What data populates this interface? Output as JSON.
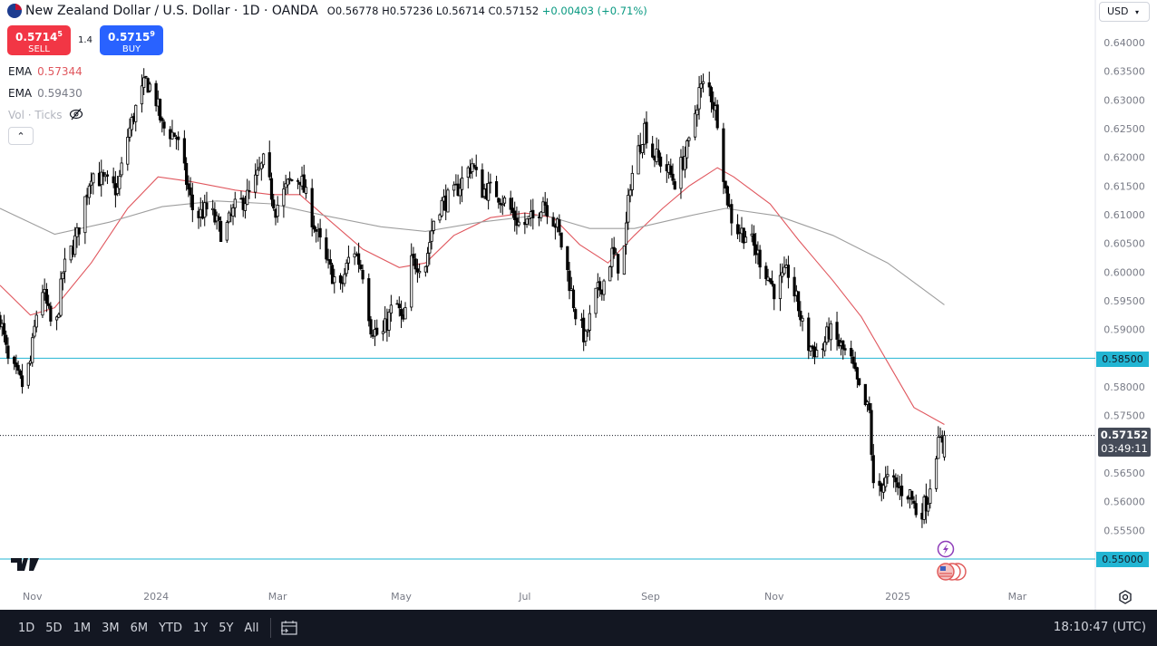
{
  "header": {
    "title": "New Zealand Dollar / U.S. Dollar · 1D · OANDA",
    "open": "O0.56778",
    "high": "H0.57236",
    "low": "L0.56714",
    "close": "C0.57152",
    "change": "+0.00403 (+0.71%)"
  },
  "trade": {
    "sell_price": "0.5714",
    "sell_sup": "5",
    "sell_label": "SELL",
    "spread": "1.4",
    "buy_price": "0.5715",
    "buy_sup": "9",
    "buy_label": "BUY"
  },
  "legend": {
    "ema1_label": "EMA",
    "ema1_value": "0.57344",
    "ema2_label": "EMA",
    "ema2_value": "0.59430",
    "vol_label": "Vol · Ticks",
    "collapse_icon": "chevron-up-icon"
  },
  "currency_select": "USD",
  "price_labels": {
    "level_high": "0.58500",
    "level_low": "0.55000",
    "current_price": "0.57152",
    "countdown": "03:49:11"
  },
  "colors": {
    "ema_fast": "#e0575e",
    "ema_slow": "#9e9e9e",
    "horizontal_lines": "#22b5d3",
    "candle_up_fill": "#ffffff",
    "candle_down_fill": "#000000"
  },
  "bottom_bar": {
    "ranges": [
      "1D",
      "5D",
      "1M",
      "3M",
      "6M",
      "YTD",
      "1Y",
      "5Y",
      "All"
    ],
    "clock": "18:10:47 (UTC)"
  },
  "chart_data": {
    "type": "candlestick",
    "title": "New Zealand Dollar / U.S. Dollar · 1D · OANDA",
    "x_ticks": [
      {
        "label": "Nov",
        "date": "2023-11-01"
      },
      {
        "label": "2024",
        "date": "2024-01-01"
      },
      {
        "label": "Mar",
        "date": "2024-03-01"
      },
      {
        "label": "May",
        "date": "2024-05-01"
      },
      {
        "label": "Jul",
        "date": "2024-07-01"
      },
      {
        "label": "Sep",
        "date": "2024-09-01"
      },
      {
        "label": "Nov",
        "date": "2024-11-01"
      },
      {
        "label": "2025",
        "date": "2025-01-01"
      },
      {
        "label": "Mar",
        "date": "2025-03-01"
      }
    ],
    "y_ticks": [
      "0.64000",
      "0.63500",
      "0.63000",
      "0.62500",
      "0.62000",
      "0.61500",
      "0.61000",
      "0.60500",
      "0.60000",
      "0.59500",
      "0.59000",
      "0.58000",
      "0.57500",
      "0.56500",
      "0.56000",
      "0.55500"
    ],
    "ylim": [
      0.5475,
      0.6415
    ],
    "grid": false,
    "last_candle": {
      "date": "2025-01-24",
      "open": 0.56778,
      "high": 0.57236,
      "low": 0.56714,
      "close": 0.57152
    },
    "close_path": [
      [
        "2023-10-16",
        0.5922
      ],
      [
        "2023-10-20",
        0.5843
      ],
      [
        "2023-10-27",
        0.5803
      ],
      [
        "2023-10-31",
        0.5843
      ],
      [
        "2023-11-05",
        0.5985
      ],
      [
        "2023-11-12",
        0.5882
      ],
      [
        "2023-11-16",
        0.6
      ],
      [
        "2023-11-23",
        0.6064
      ],
      [
        "2023-11-30",
        0.6174
      ],
      [
        "2023-12-06",
        0.6158
      ],
      [
        "2023-12-13",
        0.6143
      ],
      [
        "2023-12-18",
        0.6237
      ],
      [
        "2023-12-22",
        0.6285
      ],
      [
        "2023-12-27",
        0.6332
      ],
      [
        "2023-12-31",
        0.6316
      ],
      [
        "2024-01-04",
        0.6253
      ],
      [
        "2024-01-11",
        0.6237
      ],
      [
        "2024-01-16",
        0.6158
      ],
      [
        "2024-01-20",
        0.6095
      ],
      [
        "2024-01-27",
        0.6111
      ],
      [
        "2024-02-03",
        0.6064
      ],
      [
        "2024-02-09",
        0.6111
      ],
      [
        "2024-02-16",
        0.6135
      ],
      [
        "2024-02-23",
        0.619
      ],
      [
        "2024-02-29",
        0.6111
      ],
      [
        "2024-03-07",
        0.6158
      ],
      [
        "2024-03-12",
        0.6166
      ],
      [
        "2024-03-18",
        0.6095
      ],
      [
        "2024-03-25",
        0.6016
      ],
      [
        "2024-04-01",
        0.5969
      ],
      [
        "2024-04-07",
        0.6048
      ],
      [
        "2024-04-12",
        0.6
      ],
      [
        "2024-04-16",
        0.5906
      ],
      [
        "2024-04-21",
        0.5882
      ],
      [
        "2024-04-28",
        0.5953
      ],
      [
        "2024-05-02",
        0.5906
      ],
      [
        "2024-05-06",
        0.6016
      ],
      [
        "2024-05-13",
        0.6016
      ],
      [
        "2024-05-18",
        0.6111
      ],
      [
        "2024-05-27",
        0.6135
      ],
      [
        "2024-06-05",
        0.619
      ],
      [
        "2024-06-09",
        0.6143
      ],
      [
        "2024-06-16",
        0.6143
      ],
      [
        "2024-06-22",
        0.6119
      ],
      [
        "2024-06-29",
        0.6079
      ],
      [
        "2024-07-06",
        0.6095
      ],
      [
        "2024-07-10",
        0.6127
      ],
      [
        "2024-07-17",
        0.6079
      ],
      [
        "2024-07-22",
        0.6
      ],
      [
        "2024-07-26",
        0.5929
      ],
      [
        "2024-07-31",
        0.5882
      ],
      [
        "2024-08-04",
        0.5953
      ],
      [
        "2024-08-09",
        0.5985
      ],
      [
        "2024-08-13",
        0.6032
      ],
      [
        "2024-08-18",
        0.6
      ],
      [
        "2024-08-22",
        0.6158
      ],
      [
        "2024-08-29",
        0.6253
      ],
      [
        "2024-09-02",
        0.6206
      ],
      [
        "2024-09-07",
        0.619
      ],
      [
        "2024-09-13",
        0.6158
      ],
      [
        "2024-09-20",
        0.6222
      ],
      [
        "2024-09-25",
        0.6316
      ],
      [
        "2024-09-29",
        0.6332
      ],
      [
        "2024-10-04",
        0.6269
      ],
      [
        "2024-10-08",
        0.6143
      ],
      [
        "2024-10-12",
        0.6079
      ],
      [
        "2024-10-19",
        0.6064
      ],
      [
        "2024-10-26",
        0.6016
      ],
      [
        "2024-11-01",
        0.5969
      ],
      [
        "2024-11-08",
        0.6
      ],
      [
        "2024-11-13",
        0.5938
      ],
      [
        "2024-11-17",
        0.5874
      ],
      [
        "2024-11-24",
        0.5858
      ],
      [
        "2024-11-28",
        0.5898
      ],
      [
        "2024-12-03",
        0.5874
      ],
      [
        "2024-12-09",
        0.5843
      ],
      [
        "2024-12-14",
        0.5779
      ],
      [
        "2024-12-18",
        0.5755
      ],
      [
        "2024-12-20",
        0.5622
      ],
      [
        "2024-12-27",
        0.5637
      ],
      [
        "2025-01-02",
        0.5622
      ],
      [
        "2025-01-07",
        0.5614
      ],
      [
        "2025-01-11",
        0.5574
      ],
      [
        "2025-01-16",
        0.5606
      ],
      [
        "2025-01-19",
        0.5685
      ],
      [
        "2025-01-24",
        0.57152
      ]
    ],
    "series": [
      {
        "name": "EMA",
        "value_label": "0.57344",
        "color": "#e0575e",
        "points": [
          [
            "2023-10-16",
            0.5977
          ],
          [
            "2023-10-31",
            0.5925
          ],
          [
            "2023-11-12",
            0.5938
          ],
          [
            "2023-11-30",
            0.6016
          ],
          [
            "2023-12-18",
            0.6111
          ],
          [
            "2024-01-02",
            0.6166
          ],
          [
            "2024-01-18",
            0.6158
          ],
          [
            "2024-02-09",
            0.6143
          ],
          [
            "2024-02-27",
            0.6135
          ],
          [
            "2024-03-12",
            0.6135
          ],
          [
            "2024-03-25",
            0.6095
          ],
          [
            "2024-04-12",
            0.604
          ],
          [
            "2024-04-30",
            0.6008
          ],
          [
            "2024-05-13",
            0.6016
          ],
          [
            "2024-05-27",
            0.6064
          ],
          [
            "2024-06-14",
            0.6095
          ],
          [
            "2024-07-01",
            0.6103
          ],
          [
            "2024-07-15",
            0.6095
          ],
          [
            "2024-07-28",
            0.6048
          ],
          [
            "2024-08-11",
            0.6016
          ],
          [
            "2024-08-24",
            0.6064
          ],
          [
            "2024-09-07",
            0.6111
          ],
          [
            "2024-09-20",
            0.615
          ],
          [
            "2024-10-04",
            0.6182
          ],
          [
            "2024-10-12",
            0.6166
          ],
          [
            "2024-10-30",
            0.6119
          ],
          [
            "2024-11-13",
            0.6056
          ],
          [
            "2024-11-30",
            0.5985
          ],
          [
            "2024-12-14",
            0.5922
          ],
          [
            "2024-12-27",
            0.5843
          ],
          [
            "2025-01-09",
            0.5764
          ],
          [
            "2025-01-24",
            0.57344
          ]
        ]
      },
      {
        "name": "EMA",
        "value_label": "0.59430",
        "color": "#9e9e9e",
        "points": [
          [
            "2023-10-16",
            0.6111
          ],
          [
            "2023-11-12",
            0.6066
          ],
          [
            "2023-12-09",
            0.6087
          ],
          [
            "2024-01-04",
            0.6114
          ],
          [
            "2024-01-31",
            0.6124
          ],
          [
            "2024-02-27",
            0.6119
          ],
          [
            "2024-03-25",
            0.6098
          ],
          [
            "2024-04-21",
            0.6079
          ],
          [
            "2024-05-13",
            0.6071
          ],
          [
            "2024-06-09",
            0.6087
          ],
          [
            "2024-07-10",
            0.61
          ],
          [
            "2024-08-02",
            0.6076
          ],
          [
            "2024-08-24",
            0.6076
          ],
          [
            "2024-09-20",
            0.6098
          ],
          [
            "2024-10-08",
            0.6111
          ],
          [
            "2024-11-03",
            0.6098
          ],
          [
            "2024-11-30",
            0.6064
          ],
          [
            "2024-12-27",
            0.6016
          ],
          [
            "2025-01-24",
            0.5943
          ]
        ]
      }
    ],
    "horizontal_levels": [
      0.585,
      0.55
    ],
    "current_price": 0.57152
  }
}
